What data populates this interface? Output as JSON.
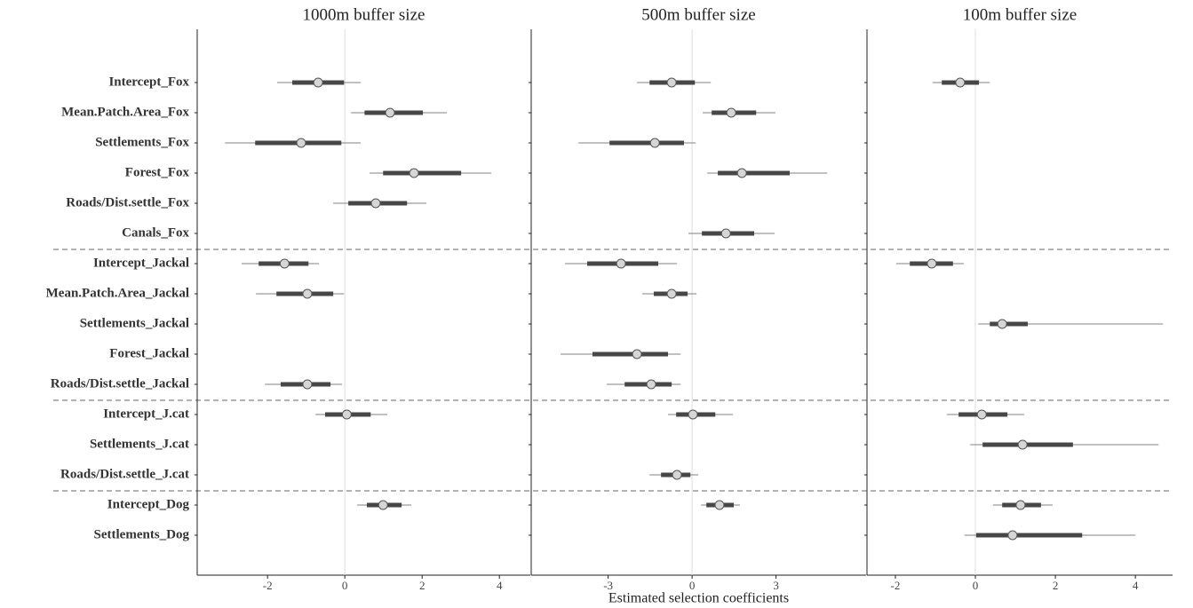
{
  "chart_data": [
    {
      "type": "forest",
      "title": "1000m buffer size",
      "categories": [
        "Intercept_Fox",
        "Mean.Patch.Area_Fox",
        "Settlements_Fox",
        "Forest_Fox",
        "Roads/Dist.settle_Fox",
        "Canals_Fox",
        "Intercept_Jackal",
        "Mean.Patch.Area_Jackal",
        "Settlements_Jackal",
        "Forest_Jackal",
        "Roads/Dist.settle_Jackal",
        "Intercept_J.cat",
        "Settlements_J.cat",
        "Roads/Dist.settle_J.cat",
        "Intercept_Dog",
        "Settlements_Dog"
      ],
      "values": [
        -0.69,
        1.17,
        -1.13,
        1.79,
        0.8,
        null,
        -1.56,
        -0.97,
        null,
        null,
        -0.97,
        0.05,
        null,
        null,
        0.99,
        null
      ],
      "inner": [
        [
          -1.36,
          -0.02
        ],
        [
          0.51,
          2.02
        ],
        [
          -2.32,
          -0.09
        ],
        [
          0.99,
          3.01
        ],
        [
          0.09,
          1.61
        ],
        null,
        [
          -2.23,
          -0.94
        ],
        [
          -1.77,
          -0.3
        ],
        null,
        null,
        [
          -1.66,
          -0.37
        ],
        [
          -0.51,
          0.67
        ],
        null,
        null,
        [
          0.57,
          1.47
        ],
        null
      ],
      "outer": [
        [
          -1.75,
          0.41
        ],
        [
          0.16,
          2.64
        ],
        [
          -3.1,
          0.41
        ],
        [
          0.64,
          3.79
        ],
        [
          -0.3,
          2.11
        ],
        null,
        [
          -2.67,
          -0.67
        ],
        [
          -2.3,
          -0.02
        ],
        null,
        null,
        [
          -2.07,
          -0.07
        ],
        [
          -0.76,
          1.1
        ],
        null,
        null,
        [
          0.32,
          1.72
        ],
        null
      ],
      "xlim": [
        -3.82,
        4.8
      ],
      "xticks": [
        -2,
        0,
        2,
        4
      ]
    },
    {
      "type": "forest",
      "title": "500m buffer size",
      "xlabel": "Estimated selection coefficients",
      "values": [
        -0.73,
        1.4,
        -1.33,
        1.78,
        null,
        1.21,
        -2.54,
        -0.73,
        null,
        -1.97,
        -1.46,
        0.03,
        null,
        -0.54,
        0.98,
        null
      ],
      "inner": [
        [
          -1.52,
          0.1
        ],
        [
          0.7,
          2.29
        ],
        [
          -2.95,
          -0.29
        ],
        [
          0.92,
          3.49
        ],
        null,
        [
          0.35,
          2.22
        ],
        [
          -3.75,
          -1.21
        ],
        [
          -1.37,
          -0.16
        ],
        null,
        [
          -3.56,
          -0.86
        ],
        [
          -2.41,
          -0.73
        ],
        [
          -0.57,
          0.83
        ],
        null,
        [
          -1.11,
          -0.06
        ],
        [
          0.51,
          1.49
        ],
        null
      ],
      "outer": [
        [
          -1.97,
          0.67
        ],
        [
          0.38,
          2.98
        ],
        [
          -4.06,
          0.13
        ],
        [
          0.54,
          4.83
        ],
        null,
        [
          -0.13,
          2.95
        ],
        [
          -4.54,
          -0.54
        ],
        [
          -1.78,
          0.16
        ],
        null,
        [
          -4.7,
          -0.41
        ],
        [
          -3.05,
          -0.41
        ],
        [
          -0.86,
          1.46
        ],
        null,
        [
          -1.52,
          0.22
        ],
        [
          0.32,
          1.71
        ],
        null
      ],
      "xlim": [
        -5.75,
        6.22
      ],
      "xticks": [
        -3,
        0,
        3
      ]
    },
    {
      "type": "forest",
      "title": "100m buffer size",
      "values": [
        -0.38,
        null,
        null,
        null,
        null,
        null,
        -1.09,
        null,
        0.67,
        null,
        null,
        0.16,
        1.18,
        null,
        1.13,
        0.93
      ],
      "inner": [
        [
          -0.84,
          0.09
        ],
        null,
        null,
        null,
        null,
        null,
        [
          -1.64,
          -0.56
        ],
        null,
        [
          0.36,
          1.31
        ],
        null,
        null,
        [
          -0.42,
          0.8
        ],
        [
          0.18,
          2.44
        ],
        null,
        [
          0.67,
          1.64
        ],
        [
          0.02,
          2.67
        ]
      ],
      "outer": [
        [
          -1.07,
          0.36
        ],
        null,
        null,
        null,
        null,
        null,
        [
          -1.98,
          -0.29
        ],
        null,
        [
          0.07,
          4.69
        ],
        null,
        null,
        [
          -0.71,
          1.22
        ],
        [
          -0.13,
          4.58
        ],
        null,
        [
          0.44,
          1.93
        ],
        [
          -0.27,
          4.0
        ]
      ],
      "xlim": [
        -2.71,
        4.93
      ],
      "xticks": [
        -2,
        0,
        2,
        4
      ]
    }
  ]
}
